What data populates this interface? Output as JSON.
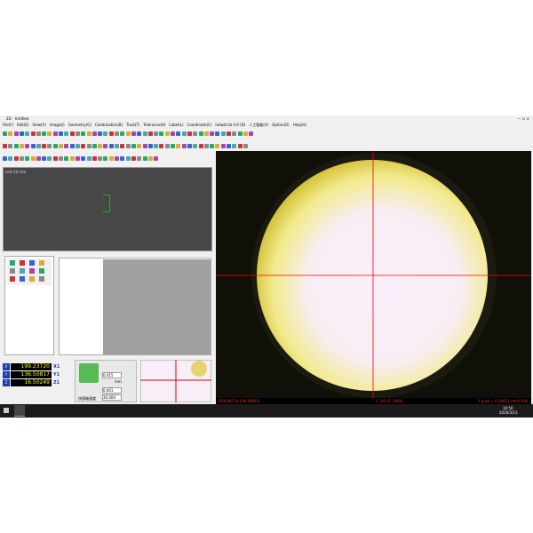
{
  "window": {
    "title": "2D - Untitled"
  },
  "menu": [
    "File(F)",
    "Edit(E)",
    "View(V)",
    "Image(I)",
    "Geometry(G)",
    "Combination(B)",
    "Trust(T)",
    "Tolerance(A)",
    "Label(L)",
    "Coordinate(C)",
    "Industrial 4.0 (D)",
    "人工智能(A)",
    "Option(O)",
    "Help(H)"
  ],
  "preview": {
    "unit": "unit:10 mm"
  },
  "coordinates": [
    {
      "axis": "X",
      "value": "199.23720",
      "unit": "X1"
    },
    {
      "axis": "Y",
      "value": "136.50817",
      "unit": "Y1"
    },
    {
      "axis": "Z",
      "value": "16.50249",
      "unit": "Z1"
    }
  ],
  "controls": {
    "step": "0.415",
    "fine": "0.001",
    "speed": "30.000",
    "unit": "mm",
    "label": "快速轴速度"
  },
  "status": {
    "position": "(320.89374,136.49822)",
    "light": "L: 341  E: 100%",
    "scale": "1 pixel = 0.00011 mm",
    "extra": "0.000"
  },
  "taskbar": {
    "time": "10:50",
    "date": "2020/3/13"
  }
}
